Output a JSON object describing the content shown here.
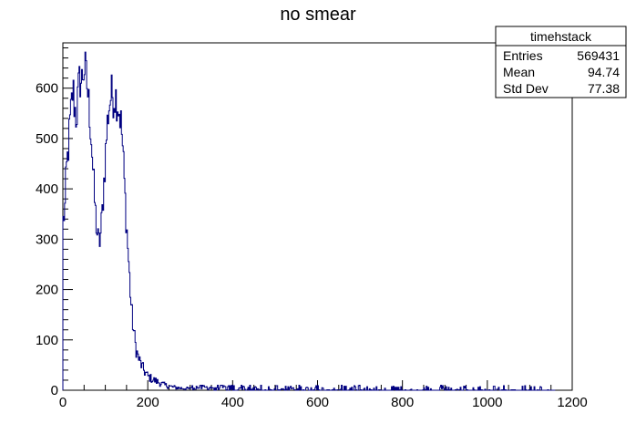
{
  "chart_data": {
    "type": "histogram",
    "title": "no smear",
    "xlabel": "",
    "ylabel": "",
    "xlim": [
      0,
      1200
    ],
    "ylim": [
      0,
      690
    ],
    "grid": false,
    "line_color": "#000080",
    "xticks": [
      "0",
      "200",
      "400",
      "600",
      "800",
      "1000",
      "1200"
    ],
    "yticks": [
      "0",
      "100",
      "200",
      "300",
      "400",
      "500",
      "600"
    ],
    "stats_box": {
      "title": "timehstack",
      "rows": [
        {
          "label": "Entries",
          "value": "569431"
        },
        {
          "label": "Mean",
          "value": "94.74"
        },
        {
          "label": "Std Dev",
          "value": "77.38"
        }
      ]
    },
    "bin_width": 2,
    "envelope": [
      [
        0,
        310
      ],
      [
        2,
        360
      ],
      [
        4,
        340
      ],
      [
        8,
        430
      ],
      [
        12,
        470
      ],
      [
        16,
        520
      ],
      [
        20,
        560
      ],
      [
        24,
        600
      ],
      [
        28,
        560
      ],
      [
        32,
        540
      ],
      [
        36,
        590
      ],
      [
        40,
        620
      ],
      [
        44,
        610
      ],
      [
        48,
        635
      ],
      [
        52,
        640
      ],
      [
        56,
        615
      ],
      [
        60,
        580
      ],
      [
        64,
        540
      ],
      [
        68,
        490
      ],
      [
        72,
        420
      ],
      [
        76,
        360
      ],
      [
        80,
        320
      ],
      [
        84,
        290
      ],
      [
        88,
        300
      ],
      [
        92,
        340
      ],
      [
        96,
        400
      ],
      [
        100,
        460
      ],
      [
        104,
        520
      ],
      [
        108,
        560
      ],
      [
        112,
        580
      ],
      [
        116,
        590
      ],
      [
        120,
        580
      ],
      [
        124,
        585
      ],
      [
        128,
        575
      ],
      [
        132,
        560
      ],
      [
        136,
        540
      ],
      [
        140,
        500
      ],
      [
        144,
        430
      ],
      [
        148,
        360
      ],
      [
        152,
        300
      ],
      [
        156,
        240
      ],
      [
        160,
        180
      ],
      [
        164,
        140
      ],
      [
        168,
        110
      ],
      [
        172,
        85
      ],
      [
        176,
        70
      ],
      [
        180,
        60
      ],
      [
        184,
        52
      ],
      [
        188,
        45
      ],
      [
        192,
        38
      ],
      [
        196,
        33
      ],
      [
        200,
        28
      ],
      [
        210,
        22
      ],
      [
        220,
        18
      ],
      [
        230,
        14
      ],
      [
        240,
        10
      ],
      [
        250,
        8
      ],
      [
        260,
        6
      ],
      [
        280,
        4
      ],
      [
        300,
        3
      ],
      [
        350,
        2
      ],
      [
        400,
        1.5
      ],
      [
        500,
        1
      ],
      [
        700,
        0.7
      ],
      [
        900,
        0.5
      ],
      [
        1160,
        0.4
      ]
    ]
  }
}
